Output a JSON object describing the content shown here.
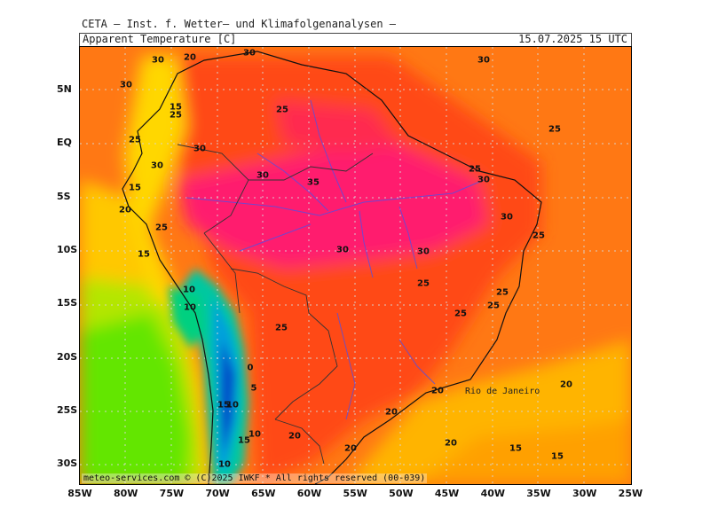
{
  "header": {
    "title": "CETA — Inst. f. Wetter— und Klimafolgenanalysen —",
    "subtitle": "Apparent Temperature [C]",
    "datetime": "15.07.2025 15 UTC"
  },
  "axes": {
    "lat_labels": [
      "5N",
      "EQ",
      "5S",
      "10S",
      "15S",
      "20S",
      "25S",
      "30S"
    ],
    "lon_labels": [
      "85W",
      "80W",
      "75W",
      "70W",
      "65W",
      "60W",
      "55W",
      "50W",
      "45W",
      "40W",
      "35W",
      "30W",
      "25W"
    ]
  },
  "contour_labels": [
    "30",
    "20",
    "30",
    "30",
    "15",
    "25",
    "30",
    "25",
    "30",
    "30",
    "25",
    "35",
    "25",
    "30",
    "30",
    "25",
    "20",
    "15",
    "25",
    "30",
    "15",
    "30",
    "10",
    "10",
    "25",
    "30",
    "25",
    "25",
    "25",
    "25",
    "25",
    "0",
    "20",
    "5",
    "15",
    "10",
    "15",
    "10",
    "20",
    "20",
    "20",
    "20",
    "15",
    "15",
    "10",
    "20"
  ],
  "city": "Rio de Janeiro",
  "footer": "meteo-services.com © (C)2025 IWKF * All rights reserved (00-039)",
  "colors": {
    "hot_magenta": "#ff1e6e",
    "red": "#ff3c1e",
    "orange_red": "#ff5a14",
    "orange": "#ff8c00",
    "yellow_orange": "#ffb400",
    "yellow": "#ffd700",
    "yellow_green": "#c8e600",
    "green": "#64e600",
    "teal": "#00c896",
    "cyan": "#00aadc",
    "blue": "#0050c8"
  }
}
